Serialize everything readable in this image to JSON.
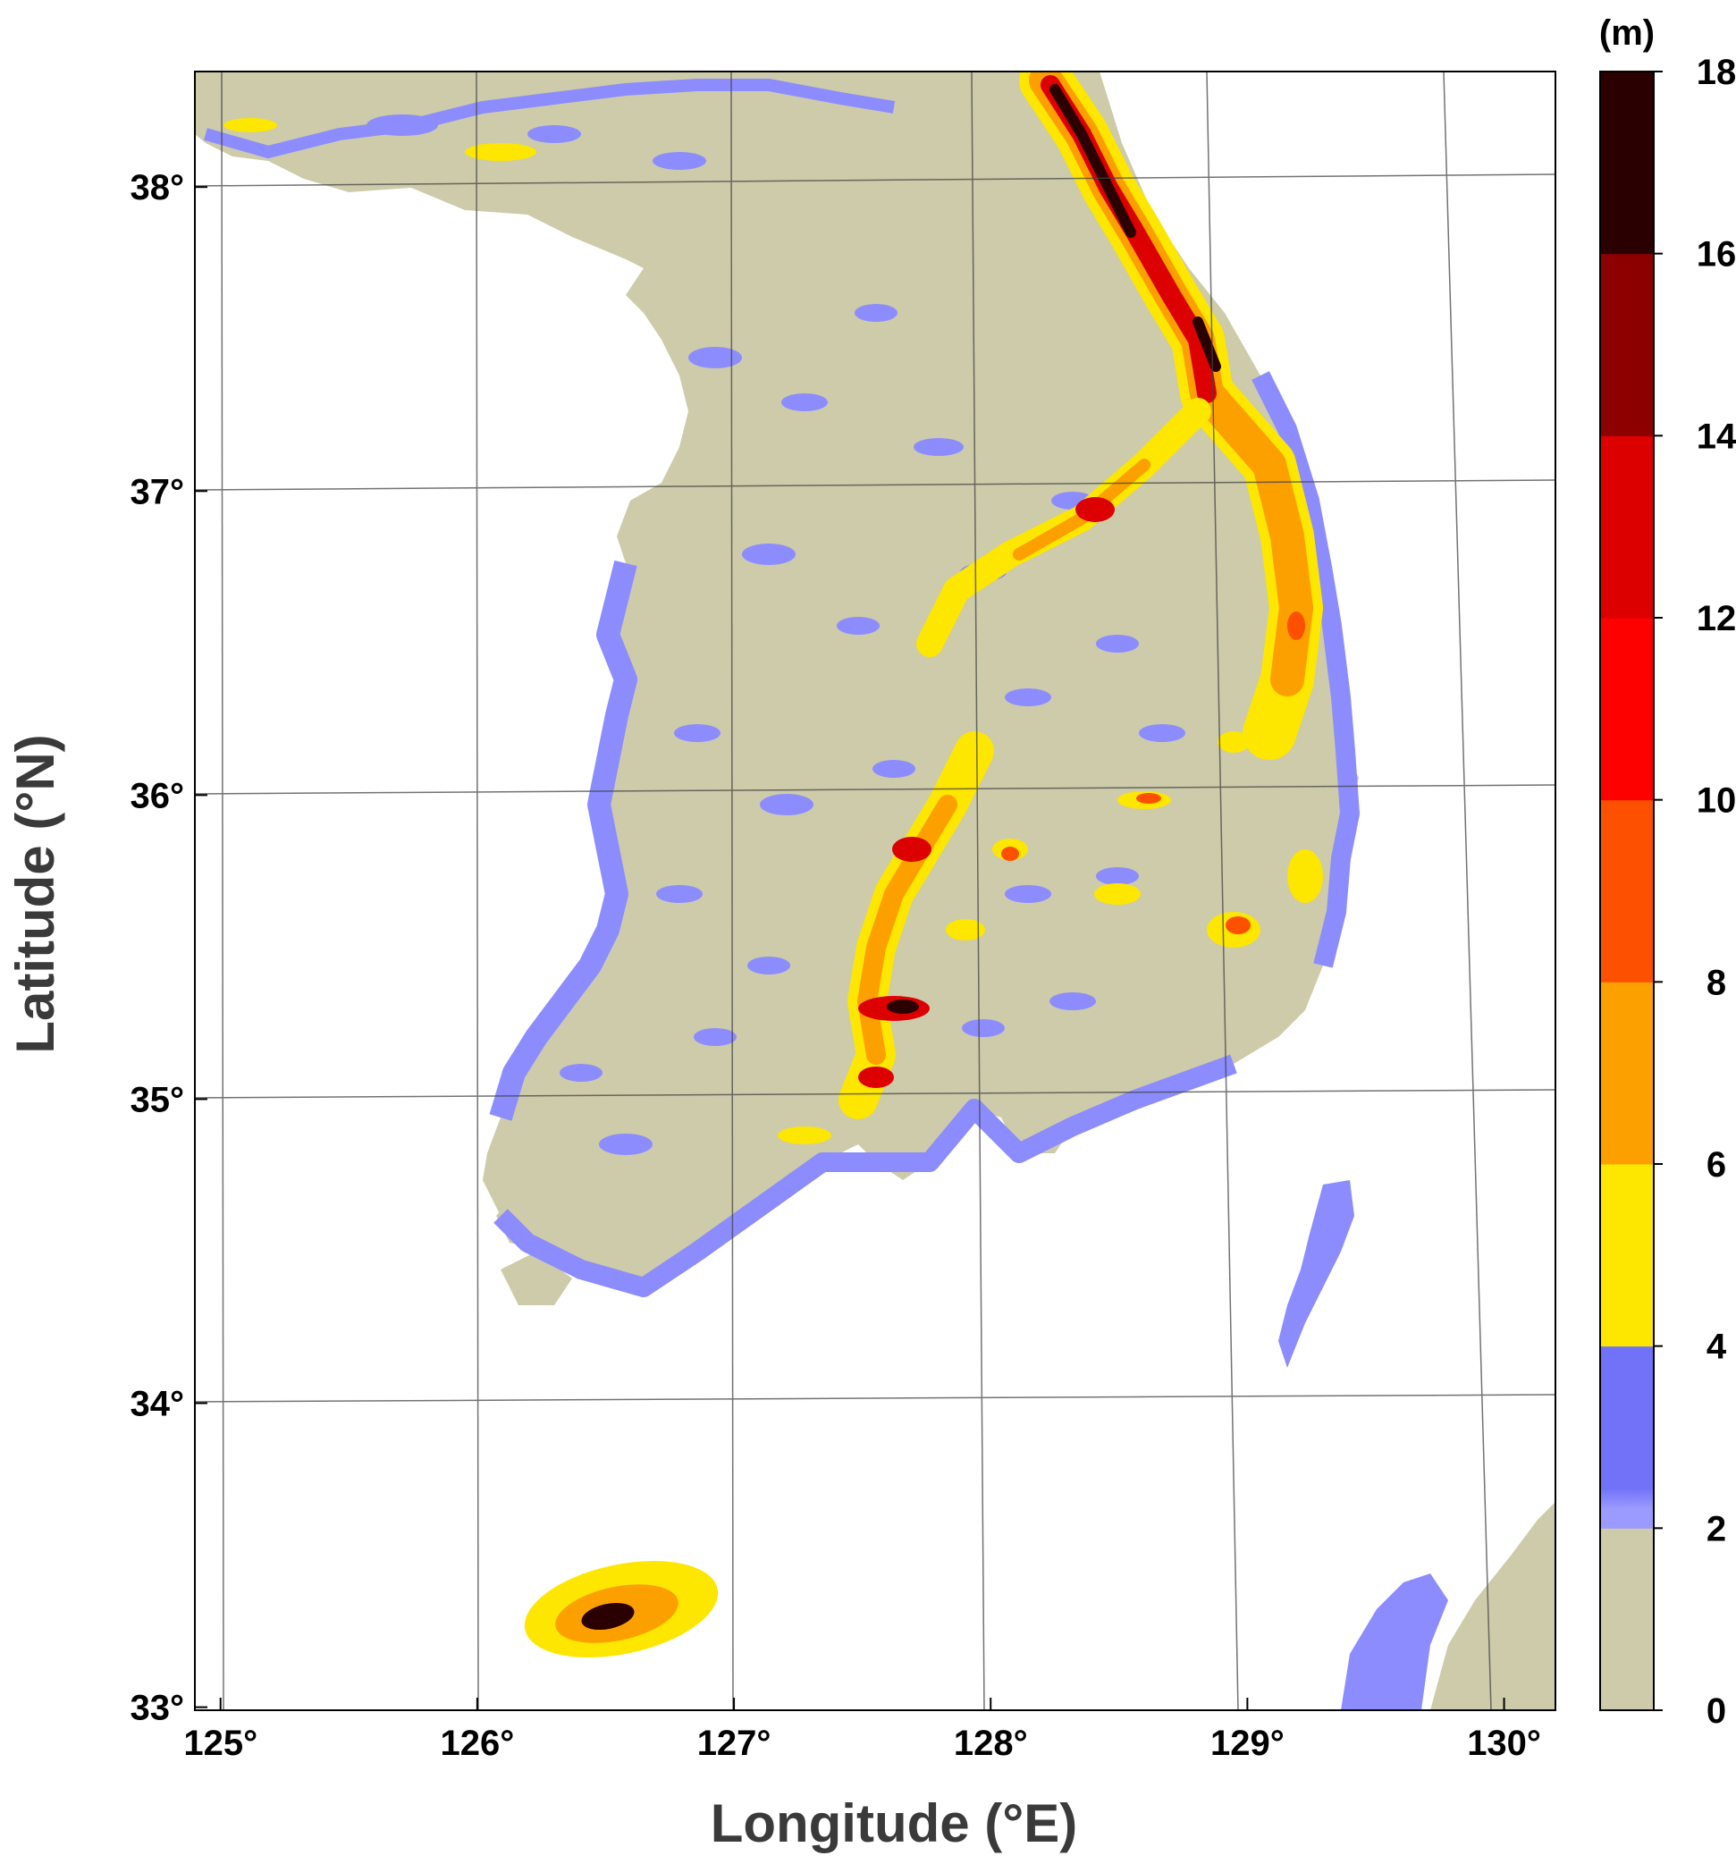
{
  "map": {
    "xlabel": "Longitude (°E)",
    "ylabel": "Latitude (°N)",
    "lon_range": [
      124.9,
      130.2
    ],
    "lat_range": [
      32.99,
      38.38
    ],
    "lon_ticks": [
      {
        "value": 125,
        "label": "125°"
      },
      {
        "value": 126,
        "label": "126°"
      },
      {
        "value": 127,
        "label": "127°"
      },
      {
        "value": 128,
        "label": "128°"
      },
      {
        "value": 129,
        "label": "129°"
      },
      {
        "value": 130,
        "label": "130°"
      }
    ],
    "lat_ticks": [
      {
        "value": 33,
        "label": "33°"
      },
      {
        "value": 34,
        "label": "34°"
      },
      {
        "value": 35,
        "label": "35°"
      },
      {
        "value": 36,
        "label": "36°"
      },
      {
        "value": 37,
        "label": "37°"
      },
      {
        "value": 38,
        "label": "38°"
      }
    ],
    "gridlines": true,
    "background_color": "#ffffff",
    "land_base_color": "#cdcbaa"
  },
  "colorbar": {
    "unit_label": "(m)",
    "levels": [
      {
        "label": "0",
        "value": 0
      },
      {
        "label": "2",
        "value": 2
      },
      {
        "label": "4",
        "value": 4
      },
      {
        "label": "6",
        "value": 6
      },
      {
        "label": "8",
        "value": 8
      },
      {
        "label": "10",
        "value": 10
      },
      {
        "label": "12",
        "value": 12
      },
      {
        "label": "14",
        "value": 14
      },
      {
        "label": "16",
        "value": 16
      },
      {
        "label": "18",
        "value": 18
      }
    ],
    "colors": [
      "#cdcbaa",
      "#8c8cff",
      "#fde600",
      "#fca000",
      "#fd5000",
      "#fd0000",
      "#dc0000",
      "#8c0000",
      "#2a0000"
    ],
    "placement": "right"
  }
}
